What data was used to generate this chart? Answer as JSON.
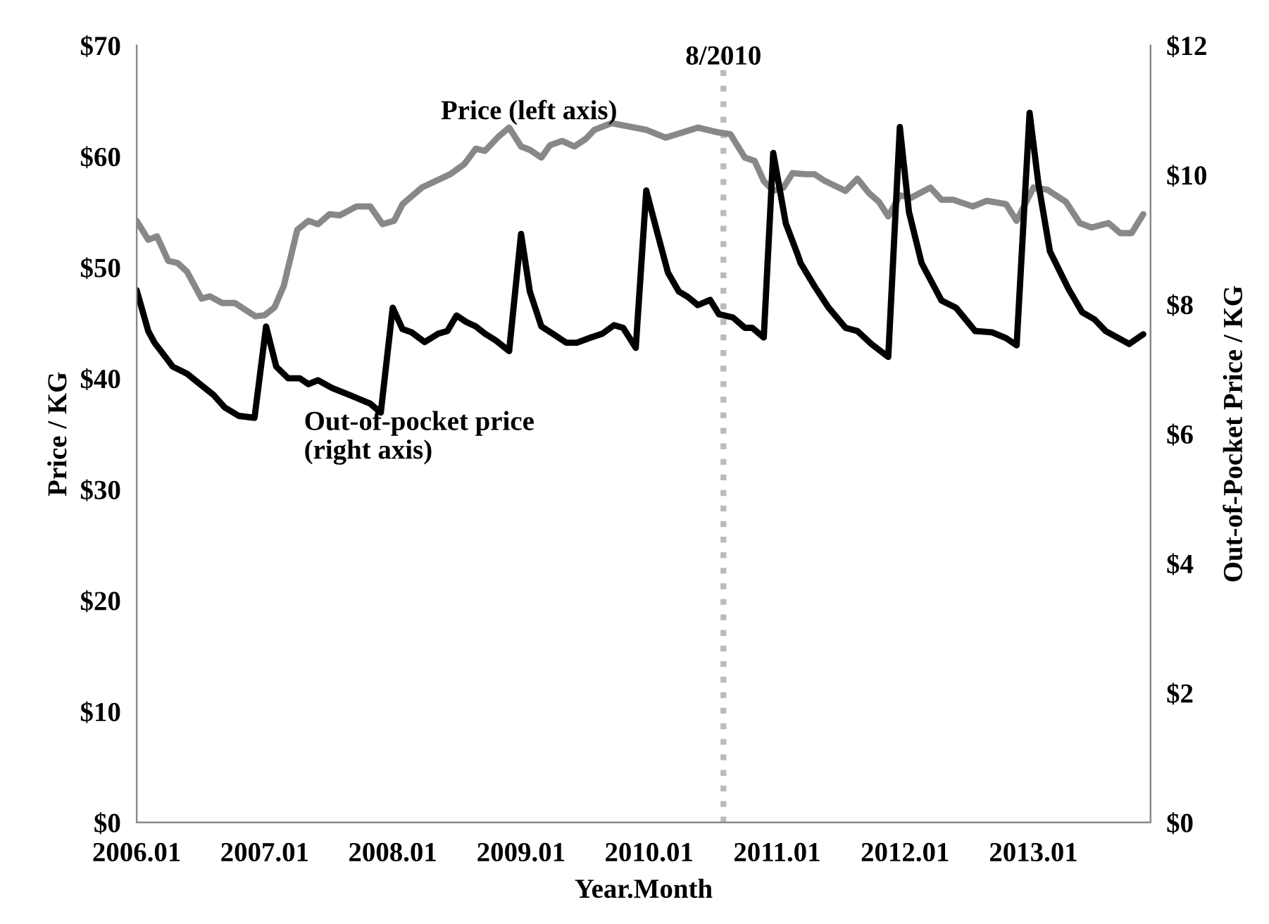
{
  "chart_data": {
    "type": "line",
    "xlabel": "Year.Month",
    "ylabel": "Price / KG",
    "y2label": "Out-of-Pocket Price / KG",
    "xlim": [
      "2006-01",
      "2013-12"
    ],
    "xticks": [
      {
        "value": "2006-01",
        "label": "2006.01"
      },
      {
        "value": "2007-01",
        "label": "2007.01"
      },
      {
        "value": "2008-01",
        "label": "2008.01"
      },
      {
        "value": "2009-01",
        "label": "2009.01"
      },
      {
        "value": "2010-01",
        "label": "2010.01"
      },
      {
        "value": "2011-01",
        "label": "2011.01"
      },
      {
        "value": "2012-01",
        "label": "2012.01"
      },
      {
        "value": "2013-01",
        "label": "2013.01"
      }
    ],
    "ylim": [
      0,
      70
    ],
    "yticks": [
      {
        "value": 0,
        "label": "$0"
      },
      {
        "value": 10,
        "label": "$10"
      },
      {
        "value": 20,
        "label": "$20"
      },
      {
        "value": 30,
        "label": "$30"
      },
      {
        "value": 40,
        "label": "$40"
      },
      {
        "value": 50,
        "label": "$50"
      },
      {
        "value": 60,
        "label": "$60"
      },
      {
        "value": 70,
        "label": "$70"
      }
    ],
    "y2lim": [
      0,
      12
    ],
    "y2ticks": [
      {
        "value": 0,
        "label": "$0"
      },
      {
        "value": 2,
        "label": "$2"
      },
      {
        "value": 4,
        "label": "$4"
      },
      {
        "value": 6,
        "label": "$6"
      },
      {
        "value": 8,
        "label": "$8"
      },
      {
        "value": 10,
        "label": "$10"
      },
      {
        "value": 12,
        "label": "$12"
      }
    ],
    "series": [
      {
        "color": "#888888",
        "axis": "y",
        "x": [
          "2006-01-01",
          "2006-02-03",
          "2006-02-28",
          "2006-04-01",
          "2006-04-28",
          "2006-05-25",
          "2006-07-05",
          "2006-07-29",
          "2006-09-02",
          "2006-10-08",
          "2006-12-06",
          "2007-01-01",
          "2007-01-29",
          "2007-02-24",
          "2007-04-04",
          "2007-05-06",
          "2007-06-02",
          "2007-07-05",
          "2007-08-03",
          "2007-09-20",
          "2007-10-29",
          "2007-12-03",
          "2008-01-05",
          "2008-01-29",
          "2008-03-24",
          "2008-06-13",
          "2008-07-23",
          "2008-08-25",
          "2008-09-20",
          "2008-10-29",
          "2008-11-28",
          "2009-01-01",
          "2009-01-26",
          "2009-02-28",
          "2009-03-24",
          "2009-04-28",
          "2009-06-02",
          "2009-07-05",
          "2009-07-29",
          "2009-09-16",
          "2009-12-24",
          "2010-02-17",
          "2010-05-20",
          "2010-07-12",
          "2010-08-21",
          "2010-10-01",
          "2010-10-29",
          "2010-11-24",
          "2010-12-21",
          "2011-01-19",
          "2011-02-14",
          "2011-03-24",
          "2011-04-18",
          "2011-05-17",
          "2011-07-15",
          "2011-08-18",
          "2011-09-20",
          "2011-10-19",
          "2011-11-14",
          "2011-12-17",
          "2012-01-19",
          "2012-03-13",
          "2012-04-14",
          "2012-05-17",
          "2012-07-12",
          "2012-08-21",
          "2012-10-15",
          "2012-11-14",
          "2013-01-01",
          "2013-02-10",
          "2013-04-04",
          "2013-05-13",
          "2013-06-16",
          "2013-08-03",
          "2013-09-05",
          "2013-10-08",
          "2013-11-10"
        ],
        "values": [
          54.2,
          52.5,
          52.8,
          50.6,
          50.4,
          49.6,
          47.2,
          47.4,
          46.8,
          46.8,
          45.6,
          45.7,
          46.4,
          48.3,
          53.4,
          54.2,
          53.9,
          54.8,
          54.7,
          55.5,
          55.5,
          53.9,
          54.2,
          55.7,
          57.2,
          58.4,
          59.3,
          60.7,
          60.5,
          61.8,
          62.6,
          60.9,
          60.6,
          59.9,
          61.0,
          61.4,
          60.9,
          61.6,
          62.4,
          63.0,
          62.4,
          61.7,
          62.6,
          62.2,
          62.0,
          59.9,
          59.6,
          57.8,
          56.9,
          57.2,
          58.5,
          58.4,
          58.4,
          57.8,
          56.9,
          58.0,
          56.7,
          55.9,
          54.6,
          56.5,
          56.3,
          57.2,
          56.1,
          56.1,
          55.5,
          56.0,
          55.7,
          54.2,
          57.2,
          57.0,
          55.9,
          54.0,
          53.6,
          54.0,
          53.1,
          53.1,
          54.8
        ]
      },
      {
        "color": "#000000",
        "axis": "y2",
        "x": [
          "2006-01-01",
          "2006-02-03",
          "2006-02-21",
          "2006-04-14",
          "2006-05-25",
          "2006-07-05",
          "2006-08-07",
          "2006-09-09",
          "2006-10-19",
          "2006-12-03",
          "2007-01-05",
          "2007-02-03",
          "2007-03-09",
          "2007-04-11",
          "2007-05-06",
          "2007-06-02",
          "2007-07-12",
          "2007-09-05",
          "2007-10-29",
          "2007-11-28",
          "2008-01-01",
          "2008-01-29",
          "2008-02-24",
          "2008-04-01",
          "2008-05-10",
          "2008-06-05",
          "2008-07-01",
          "2008-07-29",
          "2008-08-25",
          "2008-09-20",
          "2008-10-22",
          "2008-11-28",
          "2009-01-01",
          "2009-01-26",
          "2009-02-28",
          "2009-04-01",
          "2009-05-10",
          "2009-06-09",
          "2009-07-19",
          "2009-08-21",
          "2009-09-23",
          "2009-10-19",
          "2009-11-24",
          "2009-12-24",
          "2010-01-23",
          "2010-02-24",
          "2010-03-27",
          "2010-04-21",
          "2010-05-20",
          "2010-06-24",
          "2010-07-19",
          "2010-08-28",
          "2010-10-01",
          "2010-10-22",
          "2010-11-24",
          "2010-12-21",
          "2011-01-26",
          "2011-02-28",
          "2011-03-09",
          "2011-04-18",
          "2011-05-28",
          "2011-07-15",
          "2011-08-18",
          "2011-09-27",
          "2011-11-14",
          "2011-12-17",
          "2012-01-12",
          "2012-02-17",
          "2012-04-14",
          "2012-05-25",
          "2012-07-19",
          "2012-09-05",
          "2012-10-15",
          "2012-11-14",
          "2012-12-21",
          "2013-01-15",
          "2013-02-17",
          "2013-04-11",
          "2013-05-20",
          "2013-06-24",
          "2013-07-26",
          "2013-10-01",
          "2013-11-10"
        ],
        "values": [
          8.22,
          7.59,
          7.41,
          7.04,
          6.93,
          6.75,
          6.61,
          6.41,
          6.28,
          6.25,
          7.66,
          7.04,
          6.86,
          6.86,
          6.77,
          6.83,
          6.71,
          6.59,
          6.47,
          6.33,
          7.95,
          7.62,
          7.57,
          7.42,
          7.55,
          7.59,
          7.83,
          7.73,
          7.66,
          7.55,
          7.44,
          7.28,
          9.09,
          8.2,
          7.66,
          7.55,
          7.41,
          7.41,
          7.49,
          7.55,
          7.68,
          7.64,
          7.33,
          9.76,
          9.14,
          8.49,
          8.2,
          8.12,
          7.99,
          8.07,
          7.85,
          7.8,
          7.64,
          7.64,
          7.49,
          10.34,
          9.25,
          8.78,
          8.64,
          8.28,
          7.95,
          7.64,
          7.59,
          7.39,
          7.19,
          10.74,
          9.43,
          8.64,
          8.06,
          7.95,
          7.59,
          7.57,
          7.48,
          7.37,
          10.96,
          9.87,
          8.82,
          8.24,
          7.88,
          7.77,
          7.59,
          7.39,
          7.54
        ]
      }
    ],
    "ref_lines": [
      {
        "axis": "x",
        "value": "2010-08",
        "label": "8/2010",
        "color": "#bbbbbb",
        "line_style": "dotted"
      }
    ],
    "annotations": [
      "Price (left axis)",
      "Out-of-pocket price\n(right axis)"
    ],
    "grid": false,
    "legend": false,
    "marker": "none",
    "line_style": "solid"
  }
}
